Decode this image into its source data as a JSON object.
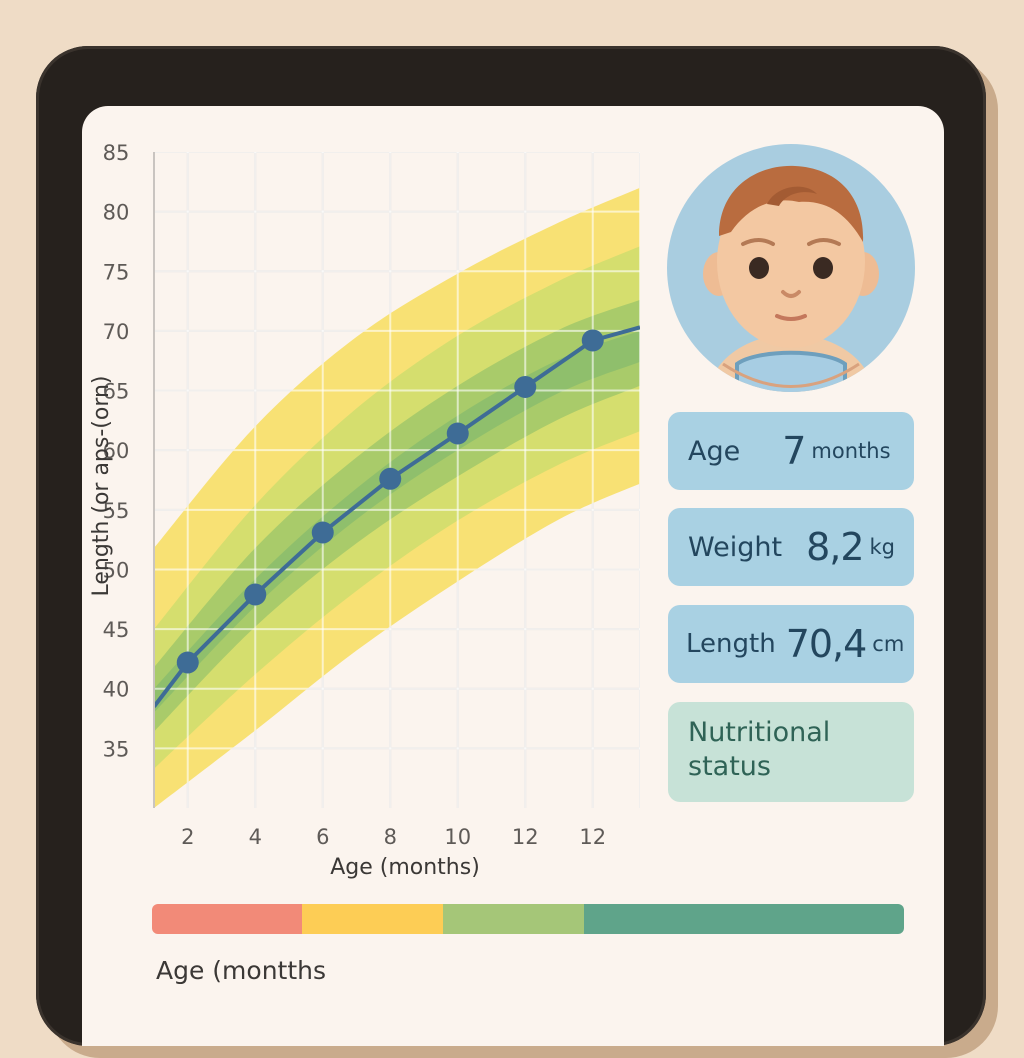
{
  "chart_data": {
    "type": "line",
    "ylabel": "Length (or aps-(orn)",
    "xlabel": "Age (months)",
    "y_ticks": [
      "85",
      "80",
      "75",
      "70",
      "65",
      "60",
      "55",
      "50",
      "45",
      "40",
      "35"
    ],
    "x_ticks": [
      "2",
      "4",
      "6",
      "8",
      "10",
      "12",
      "12"
    ],
    "ylim": [
      30,
      85
    ],
    "xlim": [
      1,
      15.4
    ],
    "series": [
      {
        "name": "child length",
        "x": [
          1,
          2,
          4,
          6,
          8,
          10,
          12,
          14,
          15.4
        ],
        "y": [
          38.5,
          42.2,
          47.9,
          53.1,
          57.6,
          61.4,
          65.3,
          69.2,
          70.3
        ],
        "markers": [
          false,
          true,
          true,
          true,
          true,
          true,
          true,
          true,
          false
        ]
      }
    ],
    "bands": [
      {
        "name": "outer band",
        "color": "#f8e174",
        "x": [
          1,
          4,
          7,
          10,
          13,
          15.4
        ],
        "upper": [
          51.8,
          62,
          69.5,
          74.8,
          79.1,
          82
        ],
        "lower": [
          30,
          36.5,
          43.2,
          49,
          54.2,
          57.2
        ]
      },
      {
        "name": "middle band",
        "color": "#d5de6e",
        "x": [
          1,
          4,
          7,
          10,
          13,
          15.4
        ],
        "upper": [
          45,
          55.4,
          63.5,
          69.6,
          74.2,
          77.1
        ],
        "lower": [
          33.3,
          41.2,
          48.2,
          54.1,
          58.8,
          61.6
        ]
      },
      {
        "name": "inner band",
        "color": "#a9cb6a",
        "x": [
          1,
          4,
          7,
          10,
          13,
          15.4
        ],
        "upper": [
          41.8,
          51.8,
          59.4,
          65.4,
          70.1,
          72.6
        ],
        "lower": [
          36.4,
          45.2,
          52.2,
          57.8,
          62.6,
          65.4
        ]
      },
      {
        "name": "core band",
        "color": "#8fbf6c",
        "x": [
          1,
          4,
          7,
          10,
          13,
          15.4
        ],
        "upper": [
          40,
          49.2,
          56.8,
          62.9,
          67.6,
          70
        ],
        "lower": [
          38,
          46.9,
          54.2,
          60,
          64.8,
          67.4
        ]
      }
    ]
  },
  "cards": {
    "age": {
      "label": "Age",
      "value": "7",
      "unit": "months"
    },
    "weight": {
      "label": "Weight",
      "value": "8,2",
      "unit": "kg"
    },
    "length": {
      "label": "Length",
      "value": "70,4",
      "unit": "cm"
    },
    "status": {
      "label": "Nutritional status"
    }
  },
  "status_bar": {
    "segments": [
      {
        "name": "red",
        "color": "#f28a78",
        "share": 0.2
      },
      {
        "name": "yellow",
        "color": "#fdcd55",
        "share": 0.1875
      },
      {
        "name": "light-green",
        "color": "#a5c678",
        "share": 0.1875
      },
      {
        "name": "teal",
        "color": "#5fa48a",
        "share": 0.425
      }
    ]
  },
  "bottom_label": "Age (montths",
  "colors": {
    "line": "#3e6c96",
    "grid": "#dcd7d3"
  }
}
